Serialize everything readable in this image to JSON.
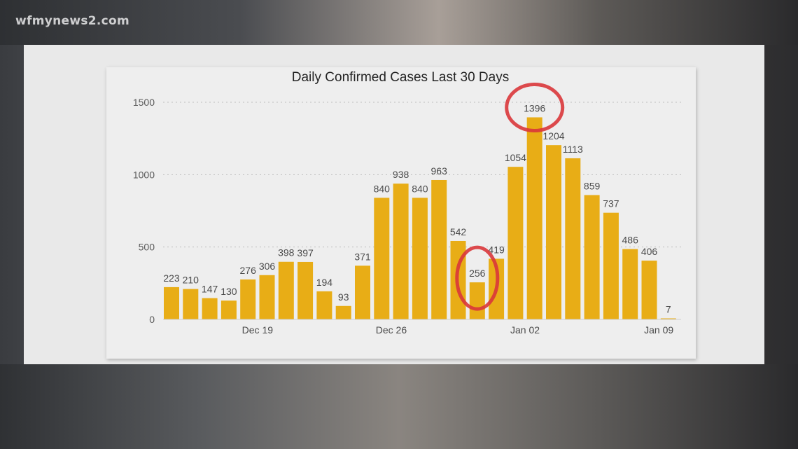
{
  "watermark": "wfmynews2.com",
  "chart_data": {
    "type": "bar",
    "title": "Daily Confirmed Cases Last 30 Days",
    "values": [
      223,
      210,
      147,
      130,
      276,
      306,
      398,
      397,
      194,
      93,
      371,
      840,
      938,
      840,
      963,
      542,
      256,
      419,
      1054,
      1396,
      1204,
      1113,
      859,
      737,
      486,
      406,
      7
    ],
    "x_tick_labels": [
      {
        "bar_index": 4.5,
        "label": "Dec 19"
      },
      {
        "bar_index": 11.5,
        "label": "Dec 26"
      },
      {
        "bar_index": 18.5,
        "label": "Jan 02"
      },
      {
        "bar_index": 25.5,
        "label": "Jan 09"
      }
    ],
    "y_ticks": [
      0,
      500,
      1000,
      1500
    ],
    "ylim": [
      0,
      1500
    ],
    "grid": true,
    "bar_color": "#e8ad16",
    "highlight_color": "#d9363a",
    "highlighted_bars": [
      16,
      19
    ]
  }
}
